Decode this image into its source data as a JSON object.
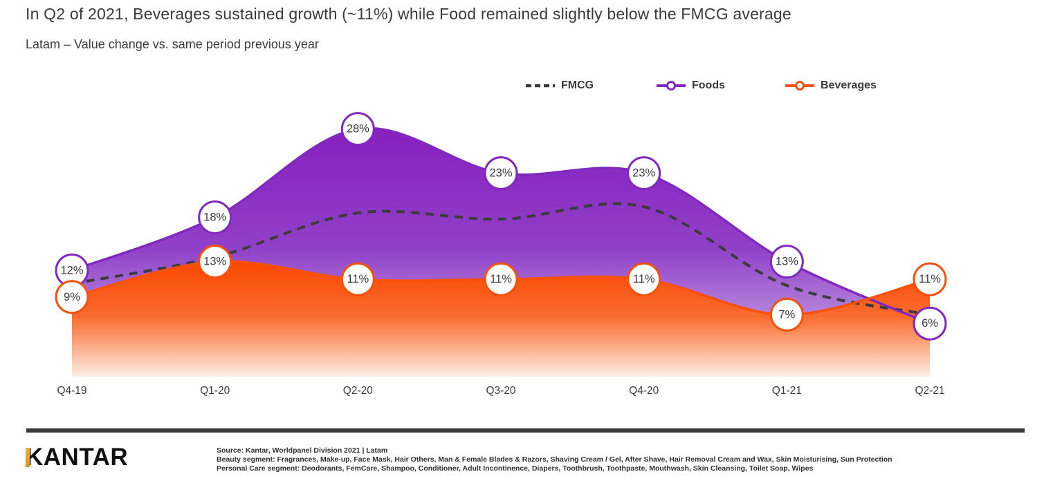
{
  "header": {
    "title": "In Q2 of 2021, Beverages sustained growth (~11%) while Food remained slightly below the FMCG average",
    "subtitle": "Latam – Value change vs. same period previous year"
  },
  "legend": {
    "position": "top",
    "items": [
      {
        "id": "fmcg",
        "label": "FMCG",
        "marker": "dashed-line",
        "color": "#3b3b3b"
      },
      {
        "id": "foods",
        "label": "Foods",
        "marker": "line-open-circle",
        "color": "#8128bf"
      },
      {
        "id": "beverages",
        "label": "Beverages",
        "marker": "line-open-circle",
        "color": "#f6500a"
      }
    ]
  },
  "chart_data": {
    "type": "area",
    "title": "Latam – Value change vs. same period previous year",
    "categories": [
      "Q4-19",
      "Q1-20",
      "Q2-20",
      "Q3-20",
      "Q4-20",
      "Q1-21",
      "Q2-21"
    ],
    "unit": "%",
    "ylim": [
      0,
      30
    ],
    "grid": false,
    "legend_position": "top",
    "series": [
      {
        "name": "FMCG",
        "type": "line",
        "line_style": "dashed",
        "color": "#3b3b3b",
        "values": [
          10.5,
          13.5,
          18.5,
          17.8,
          19.2,
          10.3,
          7
        ],
        "values_estimated": true,
        "data_labels": false
      },
      {
        "name": "Foods",
        "type": "area",
        "color": "#8128bf",
        "fill_top": "#871fbe",
        "fill_mid": "#9040c8",
        "fill_bottom": "#d5c1ec",
        "values": [
          12,
          18,
          28,
          23,
          23,
          13,
          6
        ],
        "data_labels": true
      },
      {
        "name": "Beverages",
        "type": "area",
        "color": "#f6500a",
        "fill_top": "#fb4700",
        "fill_mid": "#f96b2e",
        "fill_bottom": "#fdeee3",
        "values": [
          9,
          13,
          11,
          11,
          11,
          7,
          11
        ],
        "data_labels": true
      }
    ]
  },
  "footer": {
    "bar_color": "#3a3a3a",
    "logo_text": "KANTAR",
    "logo_gold": "#e8a33d",
    "source_lines": [
      "Source: Kantar, Worldpanel  Division 2021 | Latam",
      "Beauty segment: Fragrances, Make-up, Face Mask, Hair Others, Man & Female Blades & Razors, Shaving Cream / Gel, After Shave, Hair Removal Cream and Wax, Skin Moisturising, Sun Protection",
      "Personal Care segment: Deodorants, FemCare, Shampoo, Conditioner, Adult Incontinence, Diapers, Toothbrush, Toothpaste, Mouthwash, Skin Cleansing, Toilet Soap, Wipes"
    ]
  }
}
